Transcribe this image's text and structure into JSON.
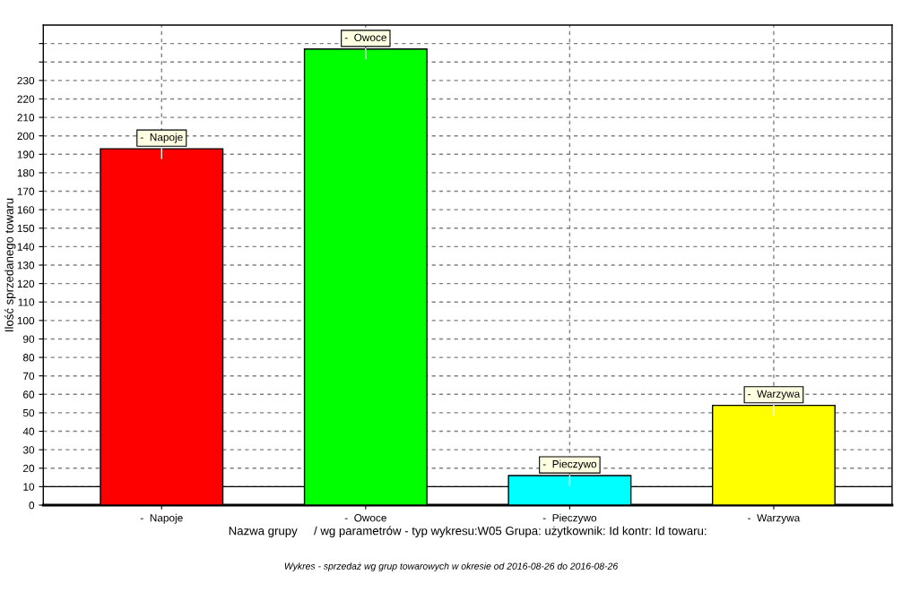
{
  "chart_data": {
    "type": "bar",
    "categories": [
      "-  Napoje",
      "-  Owoce",
      "-  Pieczywo",
      "-  Warzywa"
    ],
    "values": [
      193,
      247,
      16,
      54
    ],
    "colors": [
      "#ff0000",
      "#00ff00",
      "#00ffff",
      "#ffff00"
    ],
    "ylabel": "Ilość sprzedanego towaru",
    "xlabel": "Nazwa grupy     / wg parametrów - typ wykresu:W05 Grupa: użytkownik: Id kontr: Id towaru:",
    "ylim": [
      0,
      260
    ],
    "yticks": [
      0,
      10,
      20,
      30,
      40,
      50,
      60,
      70,
      80,
      90,
      100,
      110,
      120,
      130,
      140,
      150,
      160,
      170,
      180,
      190,
      200,
      210,
      220,
      230,
      {
        "value": 240,
        "label": null
      },
      {
        "value": 250,
        "label": null
      }
    ],
    "ref_lines": [
      {
        "axis": "y",
        "value": 10,
        "color": "#000000",
        "line_style": "solid"
      }
    ],
    "annotations": [
      {
        "text": "-  Napoje",
        "x": "-  Napoje",
        "y": 193
      },
      {
        "text": "-  Owoce",
        "x": "-  Owoce",
        "y": 247
      },
      {
        "text": "-  Pieczywo",
        "x": "-  Pieczywo",
        "y": 16
      },
      {
        "text": "-  Warzywa",
        "x": "-  Warzywa",
        "y": 54
      },
      "Wykres - sprzedaż wg grup towarowych w okresie od 2016-08-26 do 2016-08-26"
    ],
    "grid": true,
    "legend": false
  }
}
